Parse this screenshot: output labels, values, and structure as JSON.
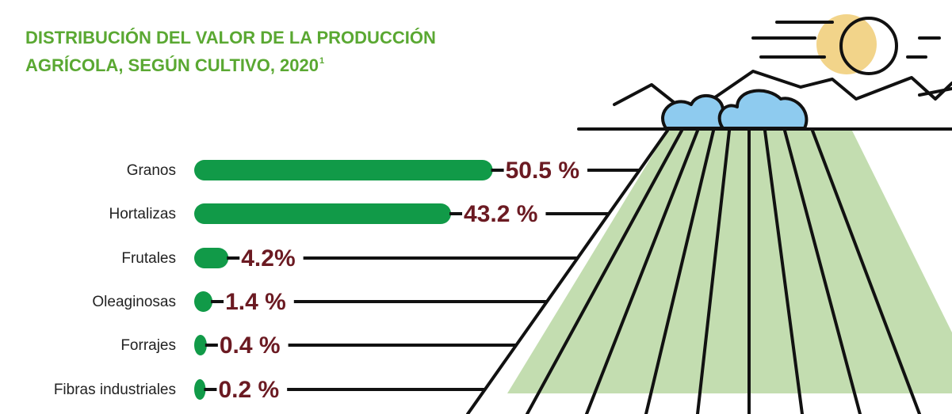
{
  "chart_data": {
    "type": "bar",
    "orientation": "horizontal",
    "title": [
      "DISTRIBUCIÓN DEL VALOR DE LA PRODUCCIÓN",
      "AGRÍCOLA, SEGÚN CULTIVO, 2020"
    ],
    "title_footnote": "1",
    "categories": [
      "Granos",
      "Hortalizas",
      "Frutales",
      "Oleaginosas",
      "Forrajes",
      "Fibras industriales"
    ],
    "values": [
      50.5,
      43.2,
      4.2,
      1.4,
      0.4,
      0.2
    ],
    "value_labels": [
      "50.5 %",
      "43.2 %",
      "4.2%",
      "1.4 %",
      "0.4 %",
      "0.2 %"
    ],
    "color": "#119a48"
  }
}
